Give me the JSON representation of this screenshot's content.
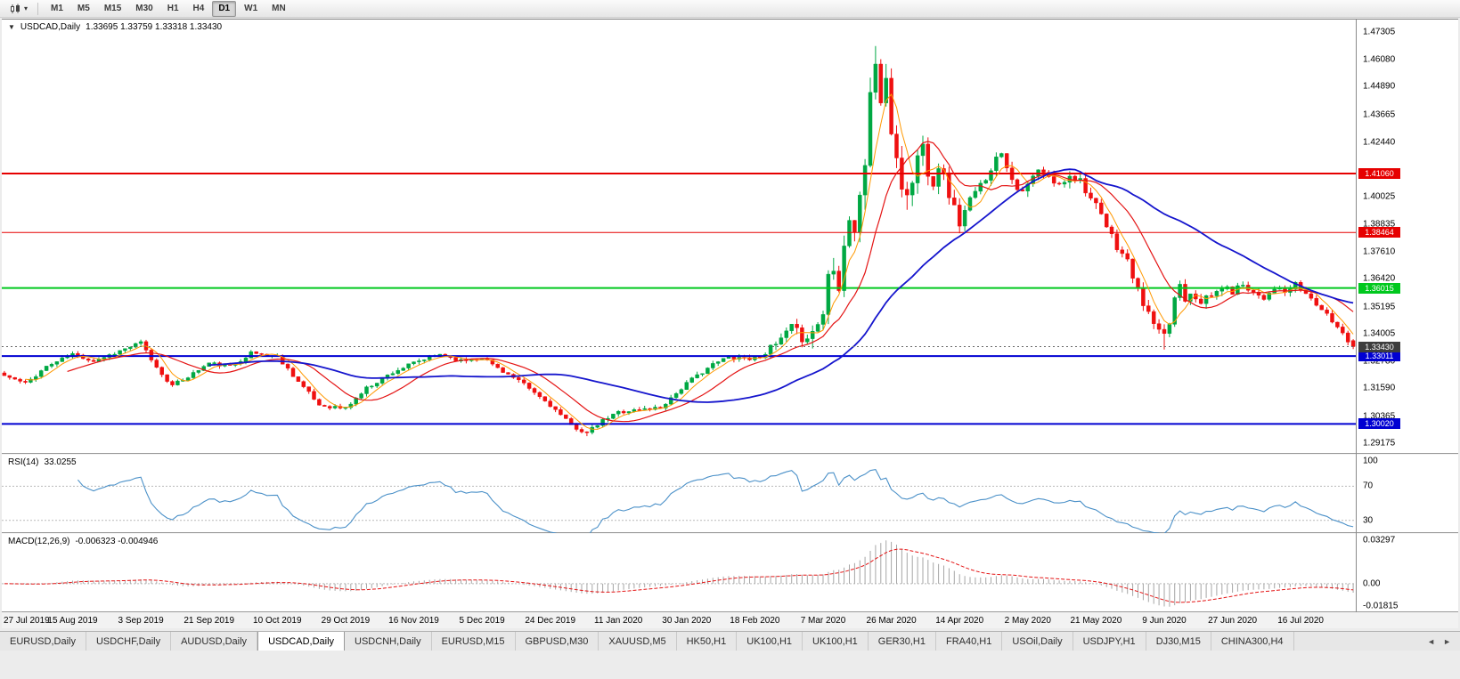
{
  "toolbar": {
    "chart_type_tooltip": "Candlesticks",
    "timeframes": [
      "M1",
      "M5",
      "M15",
      "M30",
      "H1",
      "H4",
      "D1",
      "W1",
      "MN"
    ],
    "active_timeframe": "D1"
  },
  "chart": {
    "symbol_period": "USDCAD,Daily",
    "ohlc_text": "1.33695 1.33759 1.33318 1.33430",
    "shift_marker": "▼"
  },
  "chart_data": {
    "type": "candlestick",
    "symbol": "USDCAD",
    "timeframe": "Daily",
    "ohlc": {
      "open": 1.33695,
      "high": 1.33759,
      "low": 1.33318,
      "close": 1.3343
    },
    "x_labels": [
      "27 Jul 2019",
      "15 Aug 2019",
      "3 Sep 2019",
      "21 Sep 2019",
      "10 Oct 2019",
      "29 Oct 2019",
      "16 Nov 2019",
      "5 Dec 2019",
      "24 Dec 2019",
      "11 Jan 2020",
      "30 Jan 2020",
      "18 Feb 2020",
      "7 Mar 2020",
      "26 Mar 2020",
      "14 Apr 2020",
      "2 May 2020",
      "21 May 2020",
      "9 Jun 2020",
      "27 Jun 2020",
      "16 Jul 2020"
    ],
    "label_step": 13,
    "y_ticks": [
      "1.47305",
      "1.46080",
      "1.44890",
      "1.43665",
      "1.42440",
      "1.40025",
      "1.38835",
      "1.37610",
      "1.36420",
      "1.35195",
      "1.34005",
      "1.32780",
      "1.31590",
      "1.30365",
      "1.29175"
    ],
    "y_domain": [
      1.287,
      1.4785
    ],
    "candles_count": 258,
    "seed": 11,
    "anchors": [
      [
        0,
        1.3215
      ],
      [
        4,
        1.318
      ],
      [
        8,
        1.3255
      ],
      [
        13,
        1.331
      ],
      [
        17,
        1.328
      ],
      [
        21,
        1.3315
      ],
      [
        26,
        1.336
      ],
      [
        29,
        1.325
      ],
      [
        32,
        1.317
      ],
      [
        36,
        1.3225
      ],
      [
        39,
        1.327
      ],
      [
        43,
        1.3255
      ],
      [
        47,
        1.3315
      ],
      [
        52,
        1.33
      ],
      [
        56,
        1.319
      ],
      [
        60,
        1.3085
      ],
      [
        65,
        1.307
      ],
      [
        69,
        1.316
      ],
      [
        74,
        1.323
      ],
      [
        78,
        1.327
      ],
      [
        83,
        1.331
      ],
      [
        87,
        1.328
      ],
      [
        91,
        1.3295
      ],
      [
        95,
        1.3235
      ],
      [
        99,
        1.3175
      ],
      [
        104,
        1.3085
      ],
      [
        108,
        1.2995
      ],
      [
        111,
        1.2962
      ],
      [
        114,
        1.3015
      ],
      [
        117,
        1.3055
      ],
      [
        121,
        1.3065
      ],
      [
        125,
        1.3075
      ],
      [
        130,
        1.318
      ],
      [
        134,
        1.325
      ],
      [
        138,
        1.33
      ],
      [
        143,
        1.329
      ],
      [
        147,
        1.335
      ],
      [
        150,
        1.3425
      ],
      [
        152,
        1.3385
      ],
      [
        154,
        1.3405
      ],
      [
        156,
        1.349
      ],
      [
        157,
        1.366
      ],
      [
        158,
        1.371
      ],
      [
        159,
        1.3625
      ],
      [
        160,
        1.379
      ],
      [
        161,
        1.392
      ],
      [
        162,
        1.3855
      ],
      [
        163,
        1.399
      ],
      [
        164,
        1.415
      ],
      [
        165,
        1.448
      ],
      [
        166,
        1.458
      ],
      [
        167,
        1.443
      ],
      [
        168,
        1.448
      ],
      [
        169,
        1.43
      ],
      [
        170,
        1.418
      ],
      [
        171,
        1.406
      ],
      [
        172,
        1.3995
      ],
      [
        173,
        1.408
      ],
      [
        174,
        1.418
      ],
      [
        175,
        1.4225
      ],
      [
        176,
        1.413
      ],
      [
        177,
        1.4075
      ],
      [
        178,
        1.415
      ],
      [
        179,
        1.409
      ],
      [
        180,
        1.402
      ],
      [
        181,
        1.395
      ],
      [
        182,
        1.389
      ],
      [
        184,
        1.3985
      ],
      [
        186,
        1.405
      ],
      [
        188,
        1.4135
      ],
      [
        190,
        1.4205
      ],
      [
        192,
        1.4085
      ],
      [
        194,
        1.4015
      ],
      [
        195,
        1.4055
      ],
      [
        197,
        1.412
      ],
      [
        199,
        1.4085
      ],
      [
        201,
        1.405
      ],
      [
        203,
        1.4105
      ],
      [
        205,
        1.408
      ],
      [
        207,
        1.3995
      ],
      [
        208,
        1.396
      ],
      [
        210,
        1.387
      ],
      [
        212,
        1.3785
      ],
      [
        214,
        1.372
      ],
      [
        216,
        1.3585
      ],
      [
        218,
        1.3485
      ],
      [
        220,
        1.3405
      ],
      [
        221,
        1.3385
      ],
      [
        222,
        1.3445
      ],
      [
        223,
        1.356
      ],
      [
        224,
        1.362
      ],
      [
        225,
        1.3555
      ],
      [
        226,
        1.3585
      ],
      [
        228,
        1.3545
      ],
      [
        230,
        1.3565
      ],
      [
        232,
        1.3605
      ],
      [
        234,
        1.3585
      ],
      [
        236,
        1.362
      ],
      [
        238,
        1.3585
      ],
      [
        240,
        1.356
      ],
      [
        242,
        1.3605
      ],
      [
        244,
        1.358
      ],
      [
        246,
        1.3615
      ],
      [
        247,
        1.3595
      ],
      [
        249,
        1.3555
      ],
      [
        251,
        1.3505
      ],
      [
        253,
        1.3455
      ],
      [
        255,
        1.3405
      ],
      [
        256,
        1.337
      ],
      [
        257,
        1.3343
      ]
    ],
    "spikes": [
      {
        "i": 166,
        "high": 1.4668
      },
      {
        "i": 221,
        "low": 1.333
      },
      {
        "i": 111,
        "low": 1.2948
      }
    ],
    "volatility": {
      "base": 0.0023,
      "peaks": [
        {
          "c": 166,
          "w": 14,
          "a": 0.0105
        },
        {
          "c": 203,
          "w": 42,
          "a": 0.0028
        }
      ]
    },
    "up_color": "#00a843",
    "down_color": "#ef1010",
    "moving_averages": [
      {
        "period": 5,
        "color": "#ff9800",
        "width": 1
      },
      {
        "period": 13,
        "color": "#e41414",
        "width": 1.2
      },
      {
        "period": 40,
        "color": "#1515cd",
        "width": 1.8
      }
    ],
    "hlines": [
      {
        "price": 1.4106,
        "label": "1.41060",
        "color": "#e60000",
        "width": 2
      },
      {
        "price": 1.38464,
        "label": "1.38464",
        "color": "#e60000",
        "width": 1
      },
      {
        "price": 1.36015,
        "label": "1.36015",
        "color": "#00c81e",
        "width": 2
      },
      {
        "price": 1.33011,
        "label": "1.33011",
        "color": "#0000d2",
        "width": 2
      },
      {
        "price": 1.3002,
        "label": "1.30020",
        "color": "#0000d2",
        "width": 2
      }
    ],
    "current_price": {
      "value": 1.3343,
      "label": "1.33430",
      "line_color": "#666666",
      "badge_color": "#3d3d3d"
    },
    "rsi": {
      "name": "RSI(14)",
      "value": "33.0255",
      "period": 14,
      "line_color": "#4a90c8",
      "levels": [
        {
          "v": 100,
          "label": "100",
          "line": false
        },
        {
          "v": 70,
          "label": "70",
          "line": true
        },
        {
          "v": 30,
          "label": "30",
          "line": true
        }
      ],
      "domain": [
        15,
        107
      ]
    },
    "macd": {
      "name": "MACD(12,26,9)",
      "value": "-0.006323 -0.004946",
      "fast": 12,
      "slow": 26,
      "signal": 9,
      "hist_color": "#a6a6a6",
      "signal_color": "#e41414",
      "range": [
        -0.01815,
        0.03297
      ],
      "axis": [
        {
          "v": 0.03297,
          "label": "0.03297"
        },
        {
          "v": 0,
          "label": "0.00"
        },
        {
          "v": -0.01815,
          "label": "-0.01815"
        }
      ]
    }
  },
  "tabs": {
    "items": [
      {
        "label": "EURUSD,Daily",
        "active": false
      },
      {
        "label": "USDCHF,Daily",
        "active": false
      },
      {
        "label": "AUDUSD,Daily",
        "active": false
      },
      {
        "label": "USDCAD,Daily",
        "active": true
      },
      {
        "label": "USDCNH,Daily",
        "active": false
      },
      {
        "label": "EURUSD,M15",
        "active": false
      },
      {
        "label": "GBPUSD,M30",
        "active": false
      },
      {
        "label": "XAUUSD,M5",
        "active": false
      },
      {
        "label": "HK50,H1",
        "active": false
      },
      {
        "label": "UK100,H1",
        "active": false
      },
      {
        "label": "UK100,H1",
        "active": false
      },
      {
        "label": "GER30,H1",
        "active": false
      },
      {
        "label": "FRA40,H1",
        "active": false
      },
      {
        "label": "USOil,Daily",
        "active": false
      },
      {
        "label": "USDJPY,H1",
        "active": false
      },
      {
        "label": "DJ30,M15",
        "active": false
      },
      {
        "label": "CHINA300,H4",
        "active": false
      }
    ],
    "scroll_left": "◄",
    "scroll_right": "►"
  }
}
